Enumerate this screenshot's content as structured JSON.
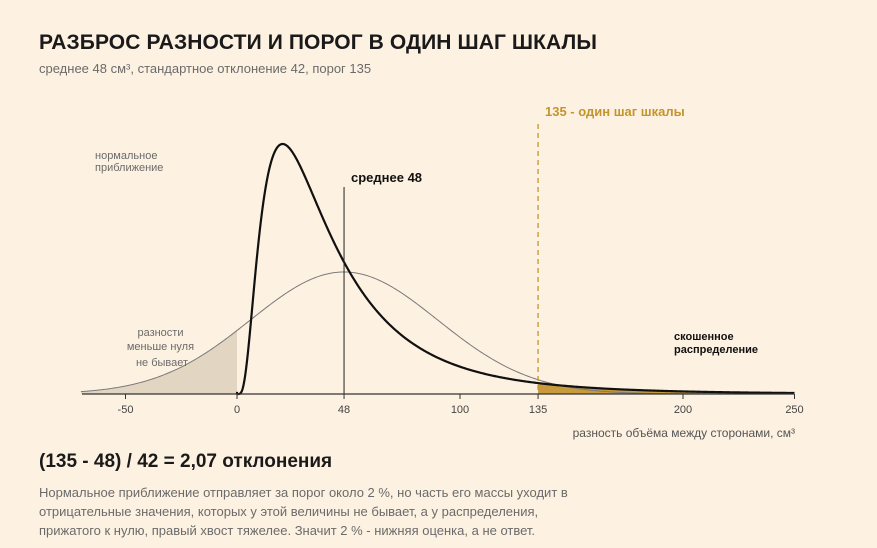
{
  "header": {
    "title": "РАЗБРОС РАЗНОСТИ И ПОРОГ В ОДИН ШАГ ШКАЛЫ",
    "subtitle": "среднее 48 см³, стандартное отклонение 42, порог 135"
  },
  "chart_data": {
    "type": "line",
    "xlabel": "разность объёма между сторонами, см³",
    "ylabel": "",
    "xlim": [
      -70,
      250
    ],
    "x_ticks": [
      -50,
      0,
      48,
      100,
      135,
      200,
      250
    ],
    "grid": false,
    "series": [
      {
        "name": "нормальное приближение",
        "distribution": "normal",
        "mean": 48,
        "sd": 42,
        "color": "#7a7a7a"
      },
      {
        "name": "скошенное распределение",
        "distribution": "lognormal",
        "mean": 48,
        "sd": 42,
        "color": "#111111"
      }
    ],
    "markers": {
      "mean": {
        "x": 48,
        "label": "среднее 48"
      },
      "threshold": {
        "x": 135,
        "label": "135 - один шаг шкалы",
        "color": "#c4952d"
      }
    },
    "annotations": {
      "normal_label": [
        "нормальное",
        "приближение"
      ],
      "negative_label": [
        "разности",
        "меньше нуля",
        "не бывает"
      ],
      "skewed_label": [
        "скошенное",
        "распределение"
      ]
    },
    "colors": {
      "negative_fill": "#e2d6c3",
      "tail_fill": "#c89a3c",
      "axis": "#333333"
    }
  },
  "footer": {
    "formula": "(135 - 48) / 42 = 2,07 отклонения",
    "note": "Нормальное приближение отправляет за порог около 2 %, но часть его массы уходит в отрицательные значения, которых у этой величины не бывает, а у распределения, прижатого к нулю, правый хвост тяжелее. Значит 2 % - нижняя оценка, а не ответ."
  }
}
